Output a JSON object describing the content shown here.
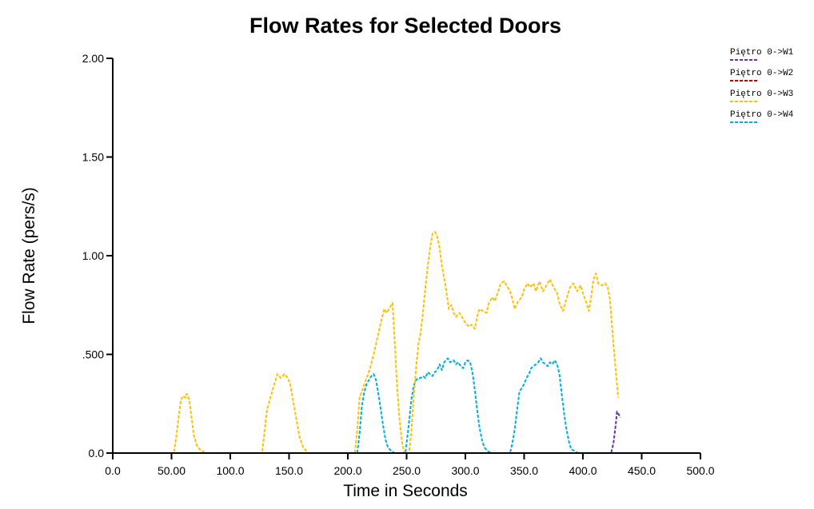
{
  "chart_data": {
    "type": "line",
    "title": "Flow Rates for Selected Doors",
    "xlabel": "Time in Seconds",
    "ylabel": "Flow Rate (pers/s)",
    "xlim": [
      0,
      500
    ],
    "ylim": [
      0,
      2
    ],
    "x_ticks": [
      "0.0",
      "50.00",
      "100.0",
      "150.0",
      "200.0",
      "250.0",
      "300.0",
      "350.0",
      "400.0",
      "450.0",
      "500.0"
    ],
    "x_tick_values": [
      0,
      50,
      100,
      150,
      200,
      250,
      300,
      350,
      400,
      450,
      500
    ],
    "y_ticks": [
      "0.0",
      ".500",
      "1.00",
      "1.50",
      "2.00"
    ],
    "y_tick_values": [
      0,
      0.5,
      1.0,
      1.5,
      2.0
    ],
    "grid": false,
    "legend_position": "top-right",
    "line_style": "dashed",
    "series": [
      {
        "name": "Piętro 0->W1",
        "color": "#6b2fa0",
        "points": [
          [
            0,
            0
          ],
          [
            424,
            0
          ],
          [
            426,
            0.05
          ],
          [
            428,
            0.15
          ],
          [
            429,
            0.21
          ],
          [
            430,
            0.2
          ],
          [
            431,
            0.19
          ],
          [
            432,
            0.18
          ]
        ]
      },
      {
        "name": "Piętro 0->W2",
        "color": "#c00000",
        "points": [
          [
            0,
            0
          ],
          [
            430,
            0
          ]
        ]
      },
      {
        "name": "Piętro 0->W3",
        "color": "#ffc000",
        "points": [
          [
            0,
            0
          ],
          [
            52,
            0
          ],
          [
            54,
            0.08
          ],
          [
            56,
            0.18
          ],
          [
            58,
            0.27
          ],
          [
            60,
            0.29
          ],
          [
            62,
            0.28
          ],
          [
            63,
            0.3
          ],
          [
            65,
            0.27
          ],
          [
            67,
            0.18
          ],
          [
            69,
            0.09
          ],
          [
            72,
            0.03
          ],
          [
            76,
            0.01
          ],
          [
            80,
            0
          ],
          [
            127,
            0
          ],
          [
            129,
            0.1
          ],
          [
            131,
            0.21
          ],
          [
            134,
            0.28
          ],
          [
            137,
            0.34
          ],
          [
            140,
            0.4
          ],
          [
            143,
            0.38
          ],
          [
            146,
            0.4
          ],
          [
            149,
            0.38
          ],
          [
            151,
            0.35
          ],
          [
            153,
            0.28
          ],
          [
            156,
            0.18
          ],
          [
            159,
            0.08
          ],
          [
            162,
            0.03
          ],
          [
            166,
            0
          ],
          [
            206,
            0
          ],
          [
            208,
            0.12
          ],
          [
            210,
            0.28
          ],
          [
            213,
            0.33
          ],
          [
            216,
            0.38
          ],
          [
            219,
            0.43
          ],
          [
            222,
            0.5
          ],
          [
            225,
            0.58
          ],
          [
            228,
            0.66
          ],
          [
            231,
            0.73
          ],
          [
            233,
            0.71
          ],
          [
            236,
            0.74
          ],
          [
            238,
            0.76
          ],
          [
            240,
            0.55
          ],
          [
            242,
            0.33
          ],
          [
            244,
            0.17
          ],
          [
            246,
            0.06
          ],
          [
            248,
            0
          ],
          [
            250,
            0
          ],
          [
            252,
            0
          ],
          [
            254,
            0.1
          ],
          [
            256,
            0.28
          ],
          [
            258,
            0.43
          ],
          [
            260,
            0.55
          ],
          [
            262,
            0.61
          ],
          [
            264,
            0.72
          ],
          [
            266,
            0.84
          ],
          [
            268,
            0.95
          ],
          [
            270,
            1.04
          ],
          [
            272,
            1.11
          ],
          [
            274,
            1.12
          ],
          [
            276,
            1.1
          ],
          [
            278,
            1.04
          ],
          [
            280,
            0.95
          ],
          [
            283,
            0.85
          ],
          [
            286,
            0.73
          ],
          [
            288,
            0.75
          ],
          [
            290,
            0.71
          ],
          [
            292,
            0.69
          ],
          [
            295,
            0.71
          ],
          [
            298,
            0.68
          ],
          [
            300,
            0.66
          ],
          [
            303,
            0.64
          ],
          [
            305,
            0.65
          ],
          [
            308,
            0.63
          ],
          [
            310,
            0.69
          ],
          [
            312,
            0.73
          ],
          [
            315,
            0.72
          ],
          [
            318,
            0.71
          ],
          [
            320,
            0.76
          ],
          [
            323,
            0.79
          ],
          [
            325,
            0.77
          ],
          [
            328,
            0.82
          ],
          [
            330,
            0.86
          ],
          [
            333,
            0.87
          ],
          [
            335,
            0.85
          ],
          [
            338,
            0.82
          ],
          [
            340,
            0.78
          ],
          [
            342,
            0.73
          ],
          [
            345,
            0.77
          ],
          [
            348,
            0.79
          ],
          [
            350,
            0.83
          ],
          [
            353,
            0.86
          ],
          [
            355,
            0.84
          ],
          [
            358,
            0.86
          ],
          [
            360,
            0.82
          ],
          [
            363,
            0.87
          ],
          [
            366,
            0.82
          ],
          [
            369,
            0.85
          ],
          [
            372,
            0.88
          ],
          [
            375,
            0.84
          ],
          [
            378,
            0.81
          ],
          [
            380,
            0.76
          ],
          [
            383,
            0.72
          ],
          [
            386,
            0.78
          ],
          [
            389,
            0.84
          ],
          [
            392,
            0.86
          ],
          [
            395,
            0.82
          ],
          [
            398,
            0.85
          ],
          [
            400,
            0.81
          ],
          [
            403,
            0.76
          ],
          [
            405,
            0.72
          ],
          [
            407,
            0.79
          ],
          [
            409,
            0.88
          ],
          [
            411,
            0.91
          ],
          [
            413,
            0.86
          ],
          [
            416,
            0.85
          ],
          [
            419,
            0.86
          ],
          [
            421,
            0.84
          ],
          [
            423,
            0.78
          ],
          [
            425,
            0.62
          ],
          [
            427,
            0.48
          ],
          [
            429,
            0.35
          ],
          [
            430,
            0.28
          ]
        ]
      },
      {
        "name": "Piętro 0->W4",
        "color": "#00b0d8",
        "points": [
          [
            0,
            0
          ],
          [
            208,
            0
          ],
          [
            210,
            0.1
          ],
          [
            212,
            0.24
          ],
          [
            214,
            0.31
          ],
          [
            216,
            0.35
          ],
          [
            218,
            0.37
          ],
          [
            220,
            0.39
          ],
          [
            222,
            0.4
          ],
          [
            224,
            0.37
          ],
          [
            226,
            0.3
          ],
          [
            228,
            0.22
          ],
          [
            230,
            0.14
          ],
          [
            232,
            0.07
          ],
          [
            234,
            0.03
          ],
          [
            237,
            0.01
          ],
          [
            240,
            0
          ],
          [
            249,
            0
          ],
          [
            250,
            0.05
          ],
          [
            252,
            0.15
          ],
          [
            254,
            0.27
          ],
          [
            256,
            0.34
          ],
          [
            258,
            0.37
          ],
          [
            260,
            0.38
          ],
          [
            262,
            0.38
          ],
          [
            264,
            0.39
          ],
          [
            266,
            0.38
          ],
          [
            268,
            0.41
          ],
          [
            270,
            0.4
          ],
          [
            272,
            0.39
          ],
          [
            274,
            0.41
          ],
          [
            276,
            0.42
          ],
          [
            278,
            0.45
          ],
          [
            280,
            0.42
          ],
          [
            282,
            0.46
          ],
          [
            285,
            0.48
          ],
          [
            287,
            0.46
          ],
          [
            290,
            0.47
          ],
          [
            292,
            0.45
          ],
          [
            294,
            0.46
          ],
          [
            296,
            0.44
          ],
          [
            298,
            0.43
          ],
          [
            300,
            0.46
          ],
          [
            302,
            0.47
          ],
          [
            304,
            0.46
          ],
          [
            306,
            0.41
          ],
          [
            308,
            0.32
          ],
          [
            310,
            0.22
          ],
          [
            312,
            0.13
          ],
          [
            314,
            0.07
          ],
          [
            316,
            0.03
          ],
          [
            319,
            0.01
          ],
          [
            322,
            0
          ],
          [
            338,
            0
          ],
          [
            340,
            0.05
          ],
          [
            342,
            0.12
          ],
          [
            344,
            0.22
          ],
          [
            346,
            0.31
          ],
          [
            348,
            0.33
          ],
          [
            350,
            0.35
          ],
          [
            352,
            0.38
          ],
          [
            354,
            0.4
          ],
          [
            356,
            0.43
          ],
          [
            358,
            0.44
          ],
          [
            360,
            0.45
          ],
          [
            362,
            0.46
          ],
          [
            364,
            0.48
          ],
          [
            366,
            0.46
          ],
          [
            368,
            0.45
          ],
          [
            370,
            0.44
          ],
          [
            372,
            0.46
          ],
          [
            374,
            0.45
          ],
          [
            376,
            0.47
          ],
          [
            378,
            0.45
          ],
          [
            380,
            0.4
          ],
          [
            382,
            0.3
          ],
          [
            384,
            0.2
          ],
          [
            386,
            0.12
          ],
          [
            388,
            0.06
          ],
          [
            390,
            0.02
          ],
          [
            393,
            0.01
          ],
          [
            396,
            0
          ],
          [
            430,
            0
          ]
        ]
      }
    ]
  }
}
